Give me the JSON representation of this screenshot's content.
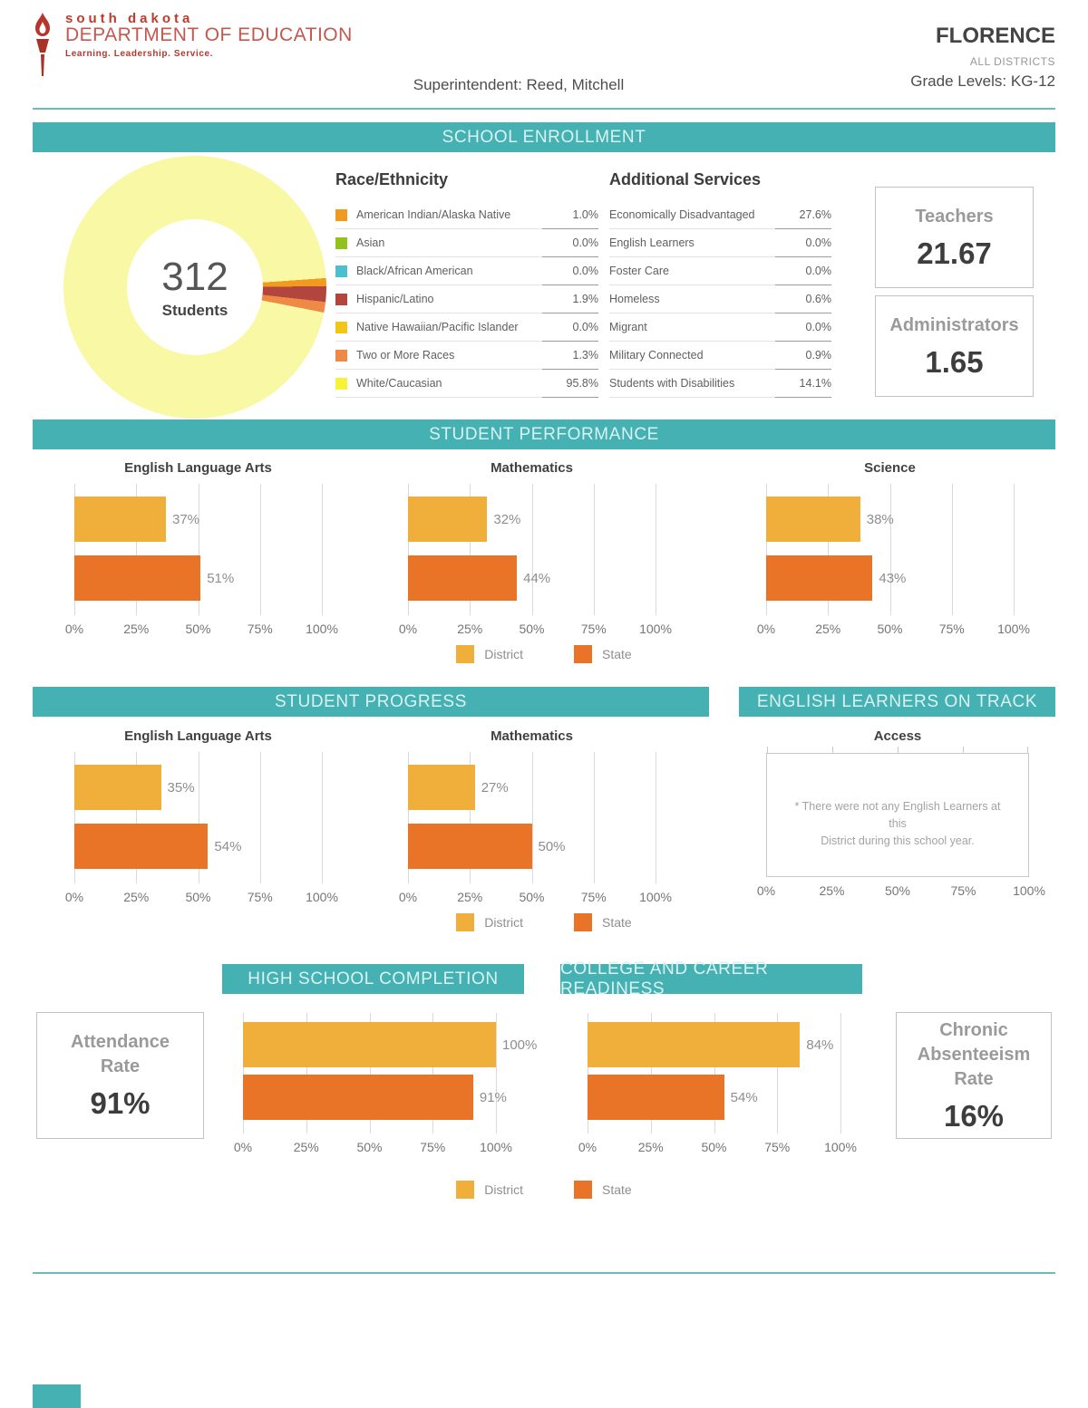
{
  "header": {
    "logo_line1": "south dakota",
    "logo_line2": "DEPARTMENT OF EDUCATION",
    "logo_tagline": "Learning. Leadership. Service.",
    "superintendent": "Superintendent: Reed, Mitchell",
    "district_name": "FLORENCE",
    "district_sub": "ALL DISTRICTS",
    "grade_levels": "Grade Levels: KG-12"
  },
  "colors": {
    "teal": "#46b1b3",
    "district": "#f0ae3b",
    "state": "#e97428"
  },
  "axis_ticks": [
    "0%",
    "25%",
    "50%",
    "75%",
    "100%"
  ],
  "legend": {
    "district": "District",
    "state": "State"
  },
  "enrollment": {
    "section_title": "SCHOOL ENROLLMENT",
    "total": "312",
    "total_label": "Students",
    "donut": {
      "start_deg": 86,
      "segments": [
        {
          "color": "#f09b1f",
          "pct": 1.0
        },
        {
          "color": "#b2453e",
          "pct": 1.9
        },
        {
          "color": "#ee8a45",
          "pct": 1.3
        },
        {
          "color": "#f8f8a5",
          "pct": 95.8
        }
      ]
    },
    "race_ethnicity": {
      "title": "Race/Ethnicity",
      "rows": [
        {
          "label": "American Indian/Alaska Native",
          "value": "1.0%",
          "color": "#f09b1f"
        },
        {
          "label": "Asian",
          "value": "0.0%",
          "color": "#93c21d"
        },
        {
          "label": "Black/African American",
          "value": "0.0%",
          "color": "#4cc0cf"
        },
        {
          "label": "Hispanic/Latino",
          "value": "1.9%",
          "color": "#b2453e"
        },
        {
          "label": "Native Hawaiian/Pacific Islander",
          "value": "0.0%",
          "color": "#f3c517"
        },
        {
          "label": "Two or More Races",
          "value": "1.3%",
          "color": "#ee8a45"
        },
        {
          "label": "White/Caucasian",
          "value": "95.8%",
          "color": "#f6f339"
        }
      ]
    },
    "additional_services": {
      "title": "Additional Services",
      "rows": [
        {
          "label": "Economically Disadvantaged",
          "value": "27.6%"
        },
        {
          "label": "English Learners",
          "value": "0.0%"
        },
        {
          "label": "Foster Care",
          "value": "0.0%"
        },
        {
          "label": "Homeless",
          "value": "0.6%"
        },
        {
          "label": "Migrant",
          "value": "0.0%"
        },
        {
          "label": "Military Connected",
          "value": "0.9%"
        },
        {
          "label": "Students with Disabilities",
          "value": "14.1%"
        }
      ]
    },
    "teachers": {
      "label": "Teachers",
      "value": "21.67"
    },
    "administrators": {
      "label": "Administrators",
      "value": "1.65"
    }
  },
  "performance": {
    "section_title": "STUDENT PERFORMANCE",
    "charts": [
      {
        "title": "English Language Arts",
        "district": 37,
        "district_label": "37%",
        "state": 51,
        "state_label": "51%"
      },
      {
        "title": "Mathematics",
        "district": 32,
        "district_label": "32%",
        "state": 44,
        "state_label": "44%"
      },
      {
        "title": "Science",
        "district": 38,
        "district_label": "38%",
        "state": 43,
        "state_label": "43%"
      }
    ]
  },
  "progress": {
    "section_title": "STUDENT PROGRESS",
    "charts": [
      {
        "title": "English Language Arts",
        "district": 35,
        "district_label": "35%",
        "state": 54,
        "state_label": "54%"
      },
      {
        "title": "Mathematics",
        "district": 27,
        "district_label": "27%",
        "state": 50,
        "state_label": "50%"
      }
    ]
  },
  "english_learners": {
    "section_title": "ENGLISH LEARNERS ON TRACK",
    "chart_title": "Access",
    "note_line1": "* There were not any English Learners at this",
    "note_line2": "District during this school year."
  },
  "completion": {
    "section_title": "HIGH SCHOOL COMPLETION",
    "district": 100,
    "district_label": "100%",
    "state": 91,
    "state_label": "91%"
  },
  "readiness": {
    "section_title": "COLLEGE AND CAREER READINESS",
    "district": 84,
    "district_label": "84%",
    "state": 54,
    "state_label": "54%"
  },
  "attendance": {
    "label_line1": "Attendance",
    "label_line2": "Rate",
    "value": "91%"
  },
  "chronic": {
    "label_line1": "Chronic",
    "label_line2": "Absenteeism",
    "label_line3": "Rate",
    "value": "16%"
  },
  "chart_data": [
    {
      "type": "pie",
      "title": "School Enrollment — Race/Ethnicity",
      "center_label": "312 Students",
      "categories": [
        "American Indian/Alaska Native",
        "Asian",
        "Black/African American",
        "Hispanic/Latino",
        "Native Hawaiian/Pacific Islander",
        "Two or More Races",
        "White/Caucasian"
      ],
      "values": [
        1.0,
        0.0,
        0.0,
        1.9,
        0.0,
        1.3,
        95.8
      ]
    },
    {
      "type": "bar",
      "title": "Student Performance — English Language Arts",
      "categories": [
        "District",
        "State"
      ],
      "values": [
        37,
        51
      ],
      "xlim": [
        0,
        100
      ],
      "orientation": "horizontal"
    },
    {
      "type": "bar",
      "title": "Student Performance — Mathematics",
      "categories": [
        "District",
        "State"
      ],
      "values": [
        32,
        44
      ],
      "xlim": [
        0,
        100
      ],
      "orientation": "horizontal"
    },
    {
      "type": "bar",
      "title": "Student Performance — Science",
      "categories": [
        "District",
        "State"
      ],
      "values": [
        38,
        43
      ],
      "xlim": [
        0,
        100
      ],
      "orientation": "horizontal"
    },
    {
      "type": "bar",
      "title": "Student Progress — English Language Arts",
      "categories": [
        "District",
        "State"
      ],
      "values": [
        35,
        54
      ],
      "xlim": [
        0,
        100
      ],
      "orientation": "horizontal"
    },
    {
      "type": "bar",
      "title": "Student Progress — Mathematics",
      "categories": [
        "District",
        "State"
      ],
      "values": [
        27,
        50
      ],
      "xlim": [
        0,
        100
      ],
      "orientation": "horizontal"
    },
    {
      "type": "bar",
      "title": "English Learners on Track — Access",
      "categories": [],
      "values": [],
      "xlim": [
        0,
        100
      ],
      "note": "* There were not any English Learners at this District during this school year."
    },
    {
      "type": "bar",
      "title": "High School Completion",
      "categories": [
        "District",
        "State"
      ],
      "values": [
        100,
        91
      ],
      "xlim": [
        0,
        100
      ],
      "orientation": "horizontal"
    },
    {
      "type": "bar",
      "title": "College and Career Readiness",
      "categories": [
        "District",
        "State"
      ],
      "values": [
        84,
        54
      ],
      "xlim": [
        0,
        100
      ],
      "orientation": "horizontal"
    },
    {
      "type": "table",
      "title": "Additional Services",
      "categories": [
        "Economically Disadvantaged",
        "English Learners",
        "Foster Care",
        "Homeless",
        "Migrant",
        "Military Connected",
        "Students with Disabilities"
      ],
      "values": [
        27.6,
        0.0,
        0.0,
        0.6,
        0.0,
        0.9,
        14.1
      ]
    },
    {
      "type": "table",
      "title": "Staff & Rates",
      "categories": [
        "Teachers",
        "Administrators",
        "Attendance Rate",
        "Chronic Absenteeism Rate"
      ],
      "values": [
        21.67,
        1.65,
        91,
        16
      ]
    }
  ]
}
